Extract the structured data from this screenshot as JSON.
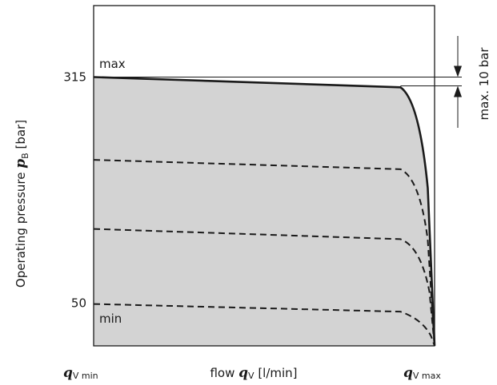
{
  "chart_data": {
    "type": "line",
    "ylabel": {
      "prefix": "Operating pressure ",
      "symbol": "p",
      "subscript": "B",
      "unit": " [bar]"
    },
    "xlabel": {
      "prefix": "flow ",
      "symbol": "q",
      "subscript": "V",
      "unit": " [l/min]"
    },
    "x_ticks": [
      {
        "symbol": "q",
        "subscript": "V min"
      },
      {
        "symbol": "q",
        "subscript": "V max"
      }
    ],
    "y_ticks": [
      {
        "label": "315",
        "value": 315
      },
      {
        "label": "50",
        "value": 50
      }
    ],
    "ylim": [
      0,
      390
    ],
    "xlim": [
      0,
      1
    ],
    "annotations": {
      "max": "max",
      "min": "min",
      "tolerance": "max. 10 bar"
    },
    "series": [
      {
        "style": "solid",
        "x": [
          0,
          0.9,
          0.955,
          0.98,
          1.0
        ],
        "y": [
          315,
          303,
          288,
          185,
          0
        ]
      },
      {
        "style": "dashed",
        "x": [
          0,
          0.9,
          0.957,
          0.98,
          1.0
        ],
        "y": [
          218,
          207,
          196,
          124,
          0
        ]
      },
      {
        "style": "dashed",
        "x": [
          0,
          0.9,
          0.96,
          0.985,
          1.0
        ],
        "y": [
          137,
          125,
          116,
          63,
          0
        ]
      },
      {
        "style": "dashed",
        "x": [
          0,
          0.9,
          0.965,
          0.99,
          1.0
        ],
        "y": [
          49,
          40,
          31,
          11,
          0
        ]
      }
    ],
    "fill": {
      "color": "#d3d3d3",
      "under_series": 0
    },
    "grid": false,
    "legend": "none",
    "colors": {
      "line": "#1a1a1a",
      "fill": "#d3d3d3",
      "frame": "#1a1a1a"
    }
  }
}
